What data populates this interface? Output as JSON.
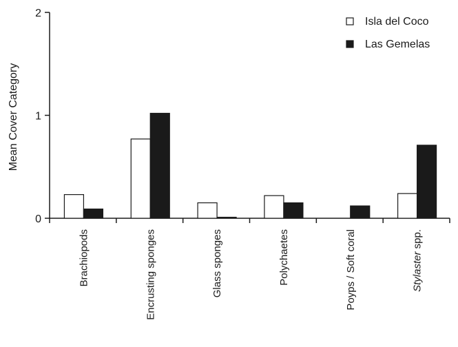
{
  "chart_data": {
    "type": "bar",
    "title": "",
    "xlabel": "",
    "ylabel": "Mean Cover Category",
    "ylim": [
      0,
      2
    ],
    "yticks": [
      "0",
      "1",
      "2"
    ],
    "grid": false,
    "legend_position": "top-right",
    "categories": [
      "Brachiopods",
      "Encrusting sponges",
      "Glass sponges",
      "Polychaetes",
      "Poyps / Soft coral",
      "Stylaster spp."
    ],
    "series": [
      {
        "name": "Isla del Coco",
        "values": [
          0.23,
          0.77,
          0.15,
          0.22,
          0.0,
          0.24
        ],
        "fill": "#ffffff",
        "stroke": "#1a1a1a"
      },
      {
        "name": "Las Gemelas",
        "values": [
          0.09,
          1.02,
          0.01,
          0.15,
          0.12,
          0.71
        ],
        "fill": "#1a1a1a",
        "stroke": "#1a1a1a"
      }
    ]
  }
}
